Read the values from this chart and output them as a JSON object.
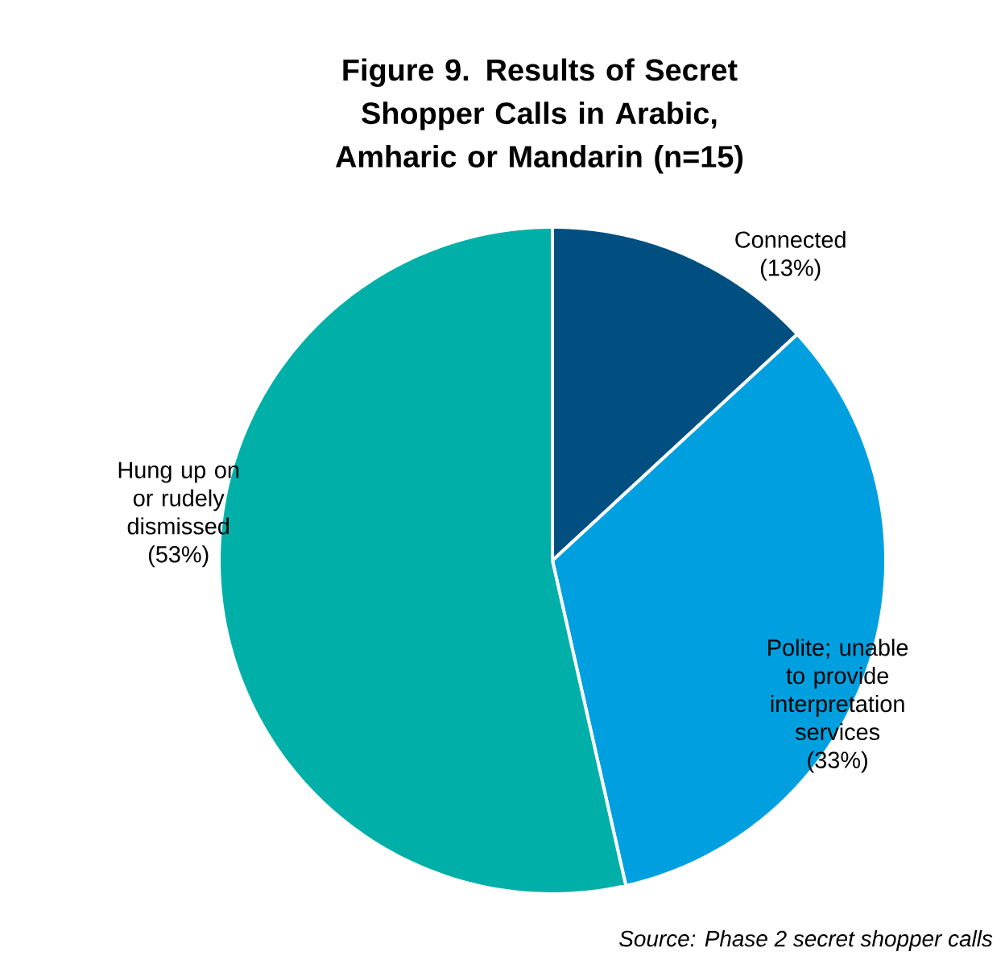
{
  "chart_data": {
    "type": "pie",
    "title": "Figure 9. Results of Secret Shopper Calls in Arabic, Amharic or Mandarin (n=15)",
    "categories": [
      "Connected",
      "Polite; unable to provide interpretation services",
      "Hung up on or rudely dismissed"
    ],
    "values": [
      13,
      33,
      53
    ],
    "value_labels": [
      "(13%)",
      "(33%)",
      "(53%)"
    ],
    "colors": [
      "#004f80",
      "#00a0e0",
      "#00b0a8"
    ],
    "annotations": [
      "*Source: Phase 2 secret shopper calls*"
    ]
  }
}
